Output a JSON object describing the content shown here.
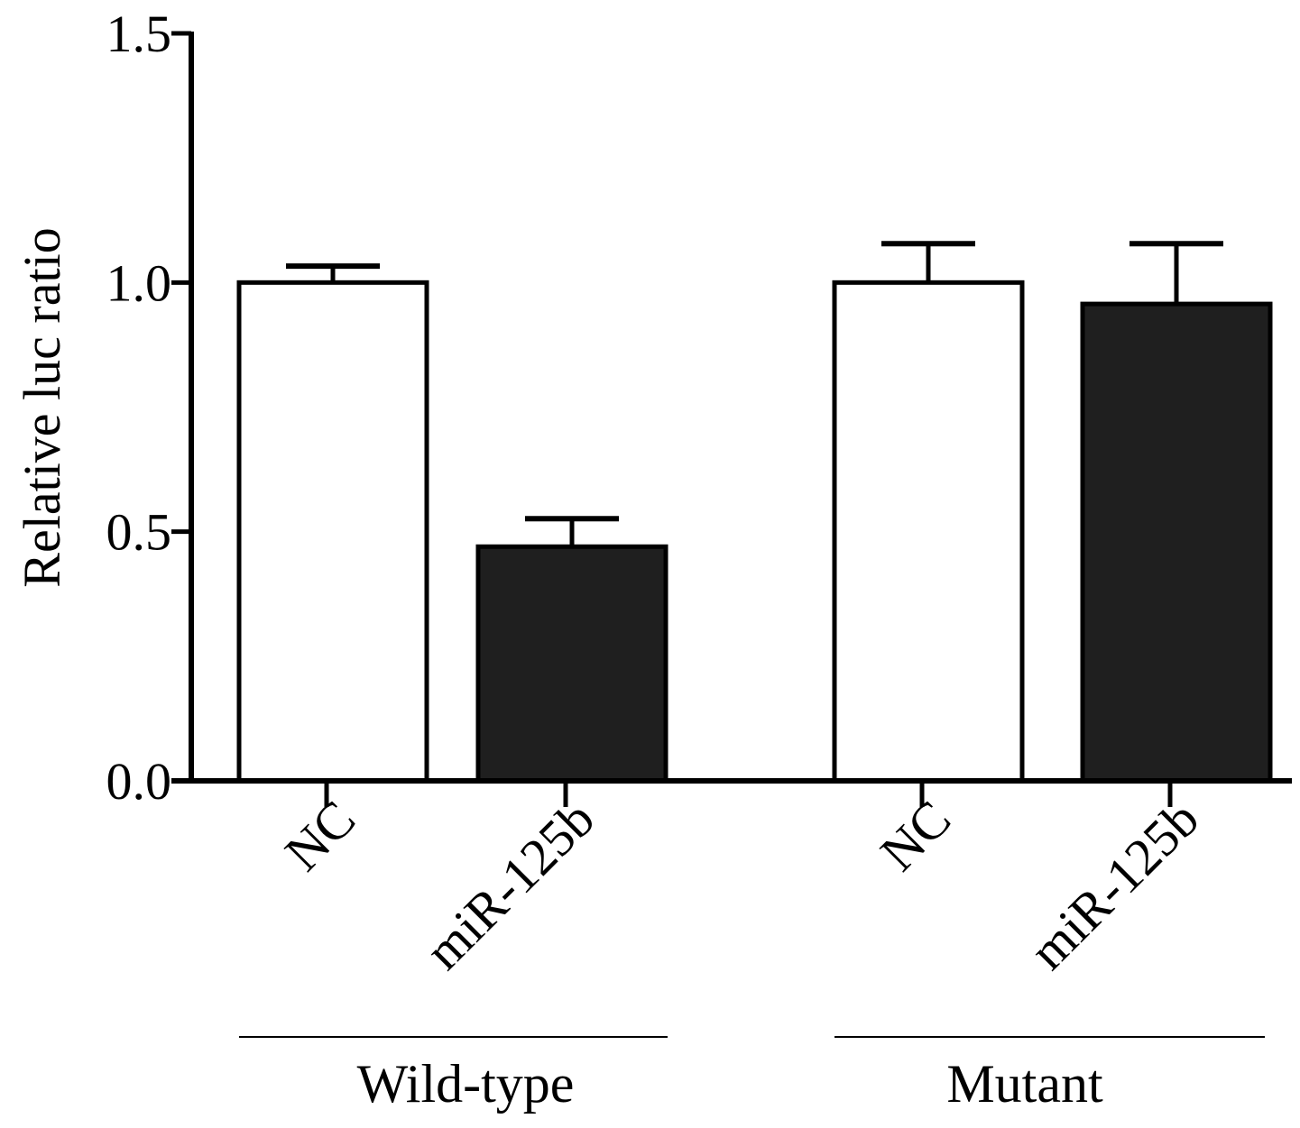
{
  "chart_data": {
    "type": "bar",
    "title": "",
    "xlabel": "",
    "ylabel": "Relative luc ratio",
    "ylim": [
      0,
      1.5
    ],
    "yticks": [
      "0.0",
      "0.5",
      "1.0",
      "1.5"
    ],
    "ytick_values": [
      0,
      0.5,
      1.0,
      1.5
    ],
    "grid": false,
    "categories": [
      "NC",
      "miR-125b",
      "NC",
      "miR-125b"
    ],
    "groups": [
      {
        "label": "Wild-type",
        "bars": [
          0,
          1
        ]
      },
      {
        "label": "Mutant",
        "bars": [
          2,
          3
        ]
      }
    ],
    "values": [
      1.0,
      0.47,
      1.0,
      0.957
    ],
    "errors": [
      0.033,
      0.056,
      0.078,
      0.121
    ],
    "fill_colors": [
      "#ffffff",
      "#1f1f1f",
      "#ffffff",
      "#1f1f1f"
    ]
  }
}
